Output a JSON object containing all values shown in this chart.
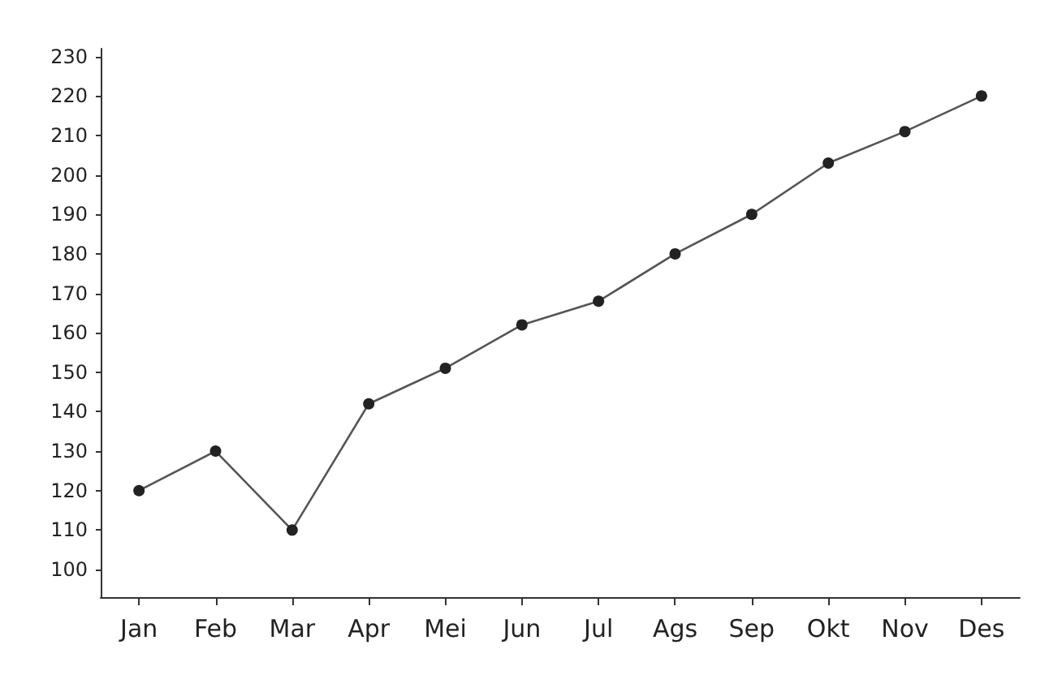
{
  "chart_data": {
    "type": "line",
    "categories": [
      "Jan",
      "Feb",
      "Mar",
      "Apr",
      "Mei",
      "Jun",
      "Jul",
      "Ags",
      "Sep",
      "Okt",
      "Nov",
      "Des"
    ],
    "series": [
      {
        "color": "#555555",
        "values": [
          120,
          130,
          110,
          142,
          151,
          162,
          168,
          180,
          190,
          203,
          211,
          220
        ]
      }
    ],
    "ylim": [
      93,
      232
    ],
    "yticks": [
      100,
      110,
      120,
      130,
      140,
      150,
      160,
      170,
      180,
      190,
      200,
      210,
      220,
      230
    ],
    "grid": false,
    "marker": "circle",
    "line_style": "solid"
  }
}
